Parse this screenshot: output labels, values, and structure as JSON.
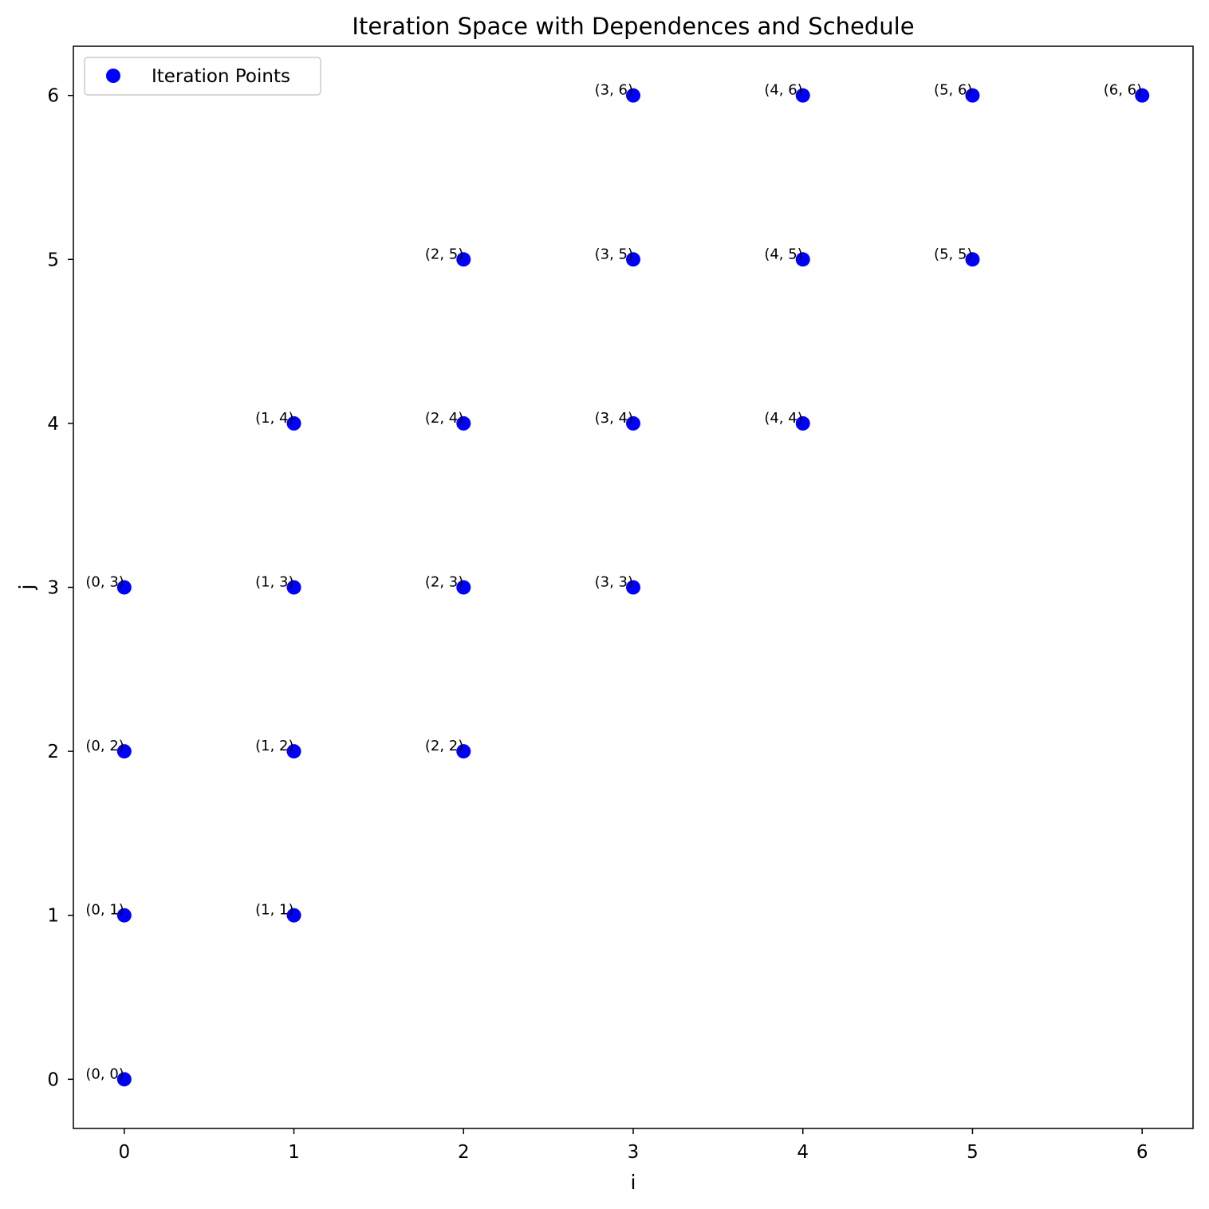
{
  "chart_data": {
    "type": "scatter",
    "title": "Iteration Space with Dependences and Schedule",
    "xlabel": "i",
    "ylabel": "j",
    "xlim": [
      -0.3,
      6.3
    ],
    "ylim": [
      -0.3,
      6.3
    ],
    "xticks": [
      "0",
      "1",
      "2",
      "3",
      "4",
      "5",
      "6"
    ],
    "yticks": [
      "0",
      "1",
      "2",
      "3",
      "4",
      "5",
      "6"
    ],
    "grid": false,
    "legend": {
      "placement": "top-left",
      "entries": [
        "Iteration Points"
      ]
    },
    "series": [
      {
        "name": "Iteration Points",
        "color": "#0000ff",
        "points": [
          {
            "x": 0,
            "y": 0,
            "label": "(0, 0)"
          },
          {
            "x": 0,
            "y": 1,
            "label": "(0, 1)"
          },
          {
            "x": 0,
            "y": 2,
            "label": "(0, 2)"
          },
          {
            "x": 0,
            "y": 3,
            "label": "(0, 3)"
          },
          {
            "x": 1,
            "y": 1,
            "label": "(1, 1)"
          },
          {
            "x": 1,
            "y": 2,
            "label": "(1, 2)"
          },
          {
            "x": 1,
            "y": 3,
            "label": "(1, 3)"
          },
          {
            "x": 1,
            "y": 4,
            "label": "(1, 4)"
          },
          {
            "x": 2,
            "y": 2,
            "label": "(2, 2)"
          },
          {
            "x": 2,
            "y": 3,
            "label": "(2, 3)"
          },
          {
            "x": 2,
            "y": 4,
            "label": "(2, 4)"
          },
          {
            "x": 2,
            "y": 5,
            "label": "(2, 5)"
          },
          {
            "x": 3,
            "y": 3,
            "label": "(3, 3)"
          },
          {
            "x": 3,
            "y": 4,
            "label": "(3, 4)"
          },
          {
            "x": 3,
            "y": 5,
            "label": "(3, 5)"
          },
          {
            "x": 3,
            "y": 6,
            "label": "(3, 6)"
          },
          {
            "x": 4,
            "y": 4,
            "label": "(4, 4)"
          },
          {
            "x": 4,
            "y": 5,
            "label": "(4, 5)"
          },
          {
            "x": 4,
            "y": 6,
            "label": "(4, 6)"
          },
          {
            "x": 5,
            "y": 5,
            "label": "(5, 5)"
          },
          {
            "x": 5,
            "y": 6,
            "label": "(5, 6)"
          },
          {
            "x": 6,
            "y": 6,
            "label": "(6, 6)"
          }
        ]
      }
    ]
  }
}
